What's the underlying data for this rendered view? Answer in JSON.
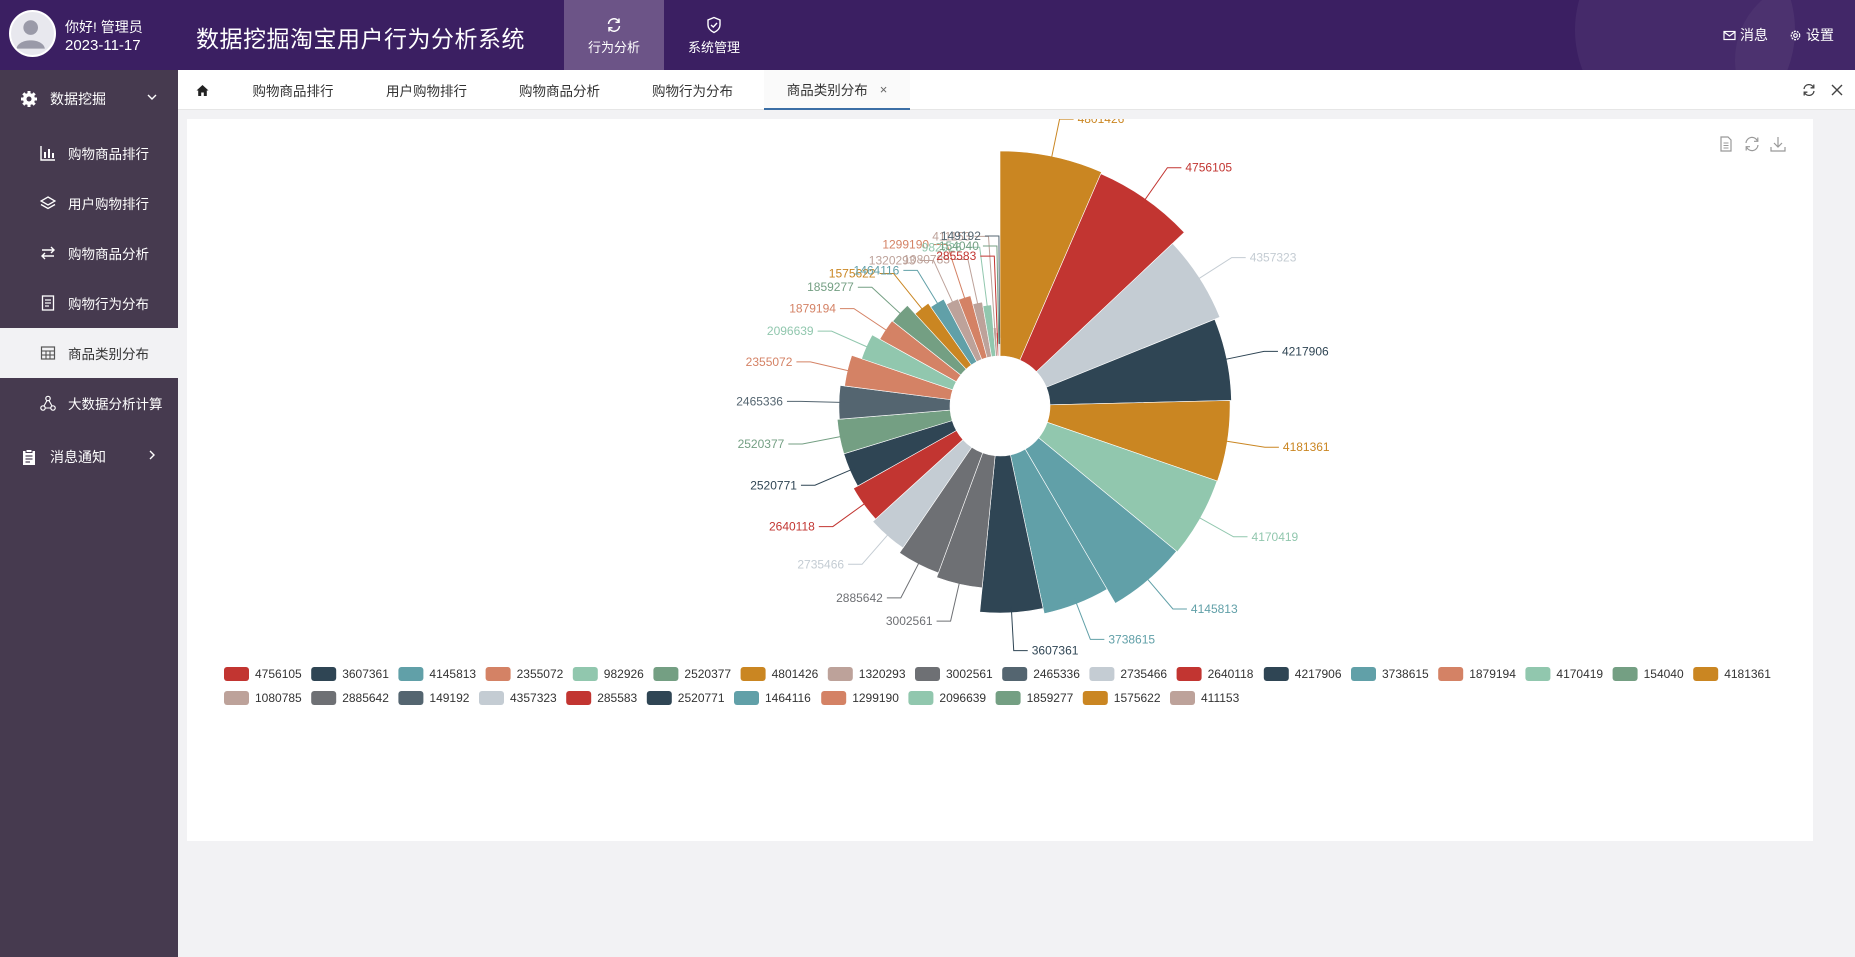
{
  "user": {
    "greeting": "你好! 管理员",
    "date": "2023-11-17"
  },
  "app": {
    "title": "数据挖掘淘宝用户行为分析系统"
  },
  "top_menu": [
    {
      "label": "行为分析",
      "icon": "refresh-icon",
      "active": true
    },
    {
      "label": "系统管理",
      "icon": "shield-check-icon",
      "active": false
    }
  ],
  "header_right": {
    "messages": "消息",
    "settings": "设置"
  },
  "sidebar": {
    "groups": [
      {
        "label": "数据挖掘",
        "icon": "gear-icon",
        "expanded": true,
        "items": [
          {
            "label": "购物商品排行",
            "icon": "bar-chart-icon"
          },
          {
            "label": "用户购物排行",
            "icon": "layers-icon"
          },
          {
            "label": "购物商品分析",
            "icon": "swap-arrows-icon"
          },
          {
            "label": "购物行为分布",
            "icon": "document-icon"
          },
          {
            "label": "商品类别分布",
            "icon": "table-icon",
            "active": true
          },
          {
            "label": "大数据分析计算",
            "icon": "network-icon"
          }
        ]
      },
      {
        "label": "消息通知",
        "icon": "clipboard-icon",
        "expanded": false,
        "items": []
      }
    ]
  },
  "tabs": [
    {
      "label": "购物商品排行"
    },
    {
      "label": "用户购物排行"
    },
    {
      "label": "购物商品分析"
    },
    {
      "label": "购物行为分布"
    },
    {
      "label": "商品类别分布",
      "active": true,
      "closable": true
    }
  ],
  "colors": {
    "header_bg": "#3b1f62",
    "sidebar_bg": "#463a4f",
    "active_menu": "#6c5487",
    "palette": [
      "#c23531",
      "#2f4554",
      "#61a0a8",
      "#d48265",
      "#91c7ae",
      "#749f83",
      "#ca8622",
      "#bda29a",
      "#6e7074",
      "#546570",
      "#c4ccd3"
    ]
  },
  "chart_data": {
    "type": "pie",
    "variant": "nightingale-rose",
    "legend_position": "bottom",
    "slices": [
      {
        "name": "4756105",
        "value": 4756105
      },
      {
        "name": "3607361",
        "value": 3607361
      },
      {
        "name": "4145813",
        "value": 4145813
      },
      {
        "name": "2355072",
        "value": 2355072
      },
      {
        "name": "982926",
        "value": 982926
      },
      {
        "name": "2520377",
        "value": 2520377
      },
      {
        "name": "4801426",
        "value": 4801426
      },
      {
        "name": "1320293",
        "value": 1320293
      },
      {
        "name": "3002561",
        "value": 3002561
      },
      {
        "name": "2465336",
        "value": 2465336
      },
      {
        "name": "2735466",
        "value": 2735466
      },
      {
        "name": "2640118",
        "value": 2640118
      },
      {
        "name": "4217906",
        "value": 4217906
      },
      {
        "name": "3738615",
        "value": 3738615
      },
      {
        "name": "1879194",
        "value": 1879194
      },
      {
        "name": "4170419",
        "value": 4170419
      },
      {
        "name": "154040",
        "value": 154040
      },
      {
        "name": "4181361",
        "value": 4181361
      },
      {
        "name": "1080785",
        "value": 1080785
      },
      {
        "name": "2885642",
        "value": 2885642
      },
      {
        "name": "149192",
        "value": 149192
      },
      {
        "name": "4357323",
        "value": 4357323
      },
      {
        "name": "285583",
        "value": 285583
      },
      {
        "name": "2520771",
        "value": 2520771
      },
      {
        "name": "1464116",
        "value": 1464116
      },
      {
        "name": "1299190",
        "value": 1299190
      },
      {
        "name": "2096639",
        "value": 2096639
      },
      {
        "name": "1859277",
        "value": 1859277
      },
      {
        "name": "1575622",
        "value": 1575622
      },
      {
        "name": "411153",
        "value": 411153
      }
    ]
  }
}
